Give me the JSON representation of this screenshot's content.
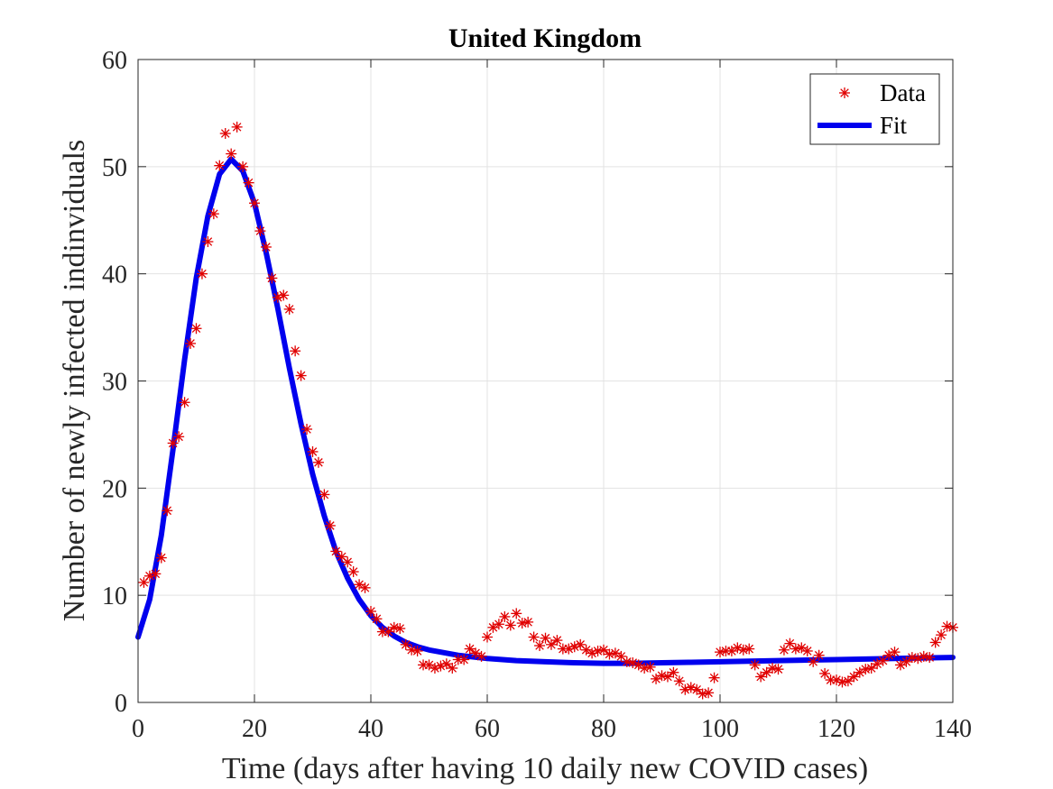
{
  "chart_data": {
    "type": "scatter",
    "title": "United Kingdom",
    "xlabel": "Time (days after having 10 daily new COVID cases)",
    "ylabel": "Number of newly infected indinviduals",
    "xlim": [
      0,
      140
    ],
    "ylim": [
      0,
      60
    ],
    "x_ticks": [
      0,
      20,
      40,
      60,
      80,
      100,
      120,
      140
    ],
    "y_ticks": [
      0,
      10,
      20,
      30,
      40,
      50,
      60
    ],
    "grid": true,
    "legend_placement": "top-right",
    "series": [
      {
        "name": "Data",
        "style": "asterisk-marker",
        "color": "#e00000",
        "points": [
          [
            1,
            11.2
          ],
          [
            2,
            11.8
          ],
          [
            3,
            12.0
          ],
          [
            4,
            13.5
          ],
          [
            5,
            17.9
          ],
          [
            6,
            24.2
          ],
          [
            7,
            24.8
          ],
          [
            8,
            28.0
          ],
          [
            9,
            33.5
          ],
          [
            10,
            34.9
          ],
          [
            11,
            40.0
          ],
          [
            12,
            43.0
          ],
          [
            13,
            45.6
          ],
          [
            14,
            50.1
          ],
          [
            15,
            53.1
          ],
          [
            16,
            51.2
          ],
          [
            17,
            53.7
          ],
          [
            18,
            50.0
          ],
          [
            19,
            48.5
          ],
          [
            20,
            46.6
          ],
          [
            21,
            44.0
          ],
          [
            22,
            42.5
          ],
          [
            23,
            39.6
          ],
          [
            24,
            37.8
          ],
          [
            25,
            38.0
          ],
          [
            26,
            36.7
          ],
          [
            27,
            32.8
          ],
          [
            28,
            30.5
          ],
          [
            29,
            25.5
          ],
          [
            30,
            23.4
          ],
          [
            31,
            22.4
          ],
          [
            32,
            19.4
          ],
          [
            33,
            16.5
          ],
          [
            34,
            14.1
          ],
          [
            35,
            13.6
          ],
          [
            36,
            13.1
          ],
          [
            37,
            12.2
          ],
          [
            38,
            11.0
          ],
          [
            39,
            10.7
          ],
          [
            40,
            8.5
          ],
          [
            41,
            7.8
          ],
          [
            42,
            6.6
          ],
          [
            43,
            6.6
          ],
          [
            44,
            7.0
          ],
          [
            45,
            6.9
          ],
          [
            46,
            5.4
          ],
          [
            47,
            4.9
          ],
          [
            48,
            4.8
          ],
          [
            49,
            3.5
          ],
          [
            50,
            3.5
          ],
          [
            51,
            3.2
          ],
          [
            52,
            3.4
          ],
          [
            53,
            3.6
          ],
          [
            54,
            3.2
          ],
          [
            55,
            4.0
          ],
          [
            56,
            4.0
          ],
          [
            57,
            5.0
          ],
          [
            58,
            4.6
          ],
          [
            59,
            4.3
          ],
          [
            60,
            6.1
          ],
          [
            61,
            7.0
          ],
          [
            62,
            7.3
          ],
          [
            63,
            8.0
          ],
          [
            64,
            7.2
          ],
          [
            65,
            8.3
          ],
          [
            66,
            7.4
          ],
          [
            67,
            7.5
          ],
          [
            68,
            6.1
          ],
          [
            69,
            5.3
          ],
          [
            70,
            6.0
          ],
          [
            71,
            5.4
          ],
          [
            72,
            5.8
          ],
          [
            73,
            5.0
          ],
          [
            74,
            5.0
          ],
          [
            75,
            5.2
          ],
          [
            76,
            5.4
          ],
          [
            77,
            4.9
          ],
          [
            78,
            4.6
          ],
          [
            79,
            4.8
          ],
          [
            80,
            4.9
          ],
          [
            81,
            4.5
          ],
          [
            82,
            4.6
          ],
          [
            83,
            4.3
          ],
          [
            84,
            3.8
          ],
          [
            85,
            3.7
          ],
          [
            86,
            3.5
          ],
          [
            87,
            3.2
          ],
          [
            88,
            3.3
          ],
          [
            89,
            2.2
          ],
          [
            90,
            2.5
          ],
          [
            91,
            2.4
          ],
          [
            92,
            2.8
          ],
          [
            93,
            2.0
          ],
          [
            94,
            1.2
          ],
          [
            95,
            1.4
          ],
          [
            96,
            1.2
          ],
          [
            97,
            0.8
          ],
          [
            98,
            0.9
          ],
          [
            99,
            2.3
          ],
          [
            100,
            4.7
          ],
          [
            101,
            4.8
          ],
          [
            102,
            4.8
          ],
          [
            103,
            5.1
          ],
          [
            104,
            4.9
          ],
          [
            105,
            5.0
          ],
          [
            106,
            3.5
          ],
          [
            107,
            2.4
          ],
          [
            108,
            2.8
          ],
          [
            109,
            3.2
          ],
          [
            110,
            3.1
          ],
          [
            111,
            4.9
          ],
          [
            112,
            5.5
          ],
          [
            113,
            5.0
          ],
          [
            114,
            5.1
          ],
          [
            115,
            4.8
          ],
          [
            116,
            3.8
          ],
          [
            117,
            4.4
          ],
          [
            118,
            2.7
          ],
          [
            119,
            2.1
          ],
          [
            120,
            2.1
          ],
          [
            121,
            1.9
          ],
          [
            122,
            2.0
          ],
          [
            123,
            2.4
          ],
          [
            124,
            2.8
          ],
          [
            125,
            3.1
          ],
          [
            126,
            3.2
          ],
          [
            127,
            3.6
          ],
          [
            128,
            3.9
          ],
          [
            129,
            4.4
          ],
          [
            130,
            4.7
          ],
          [
            131,
            3.5
          ],
          [
            132,
            3.8
          ],
          [
            133,
            4.2
          ],
          [
            134,
            4.1
          ],
          [
            135,
            4.3
          ],
          [
            136,
            4.2
          ],
          [
            137,
            5.6
          ],
          [
            138,
            6.3
          ],
          [
            139,
            7.1
          ],
          [
            140,
            7.0
          ]
        ]
      },
      {
        "name": "Fit",
        "style": "line",
        "color": "#0000ee",
        "points": [
          [
            0,
            6.1
          ],
          [
            2,
            9.6
          ],
          [
            4,
            15.6
          ],
          [
            6,
            23.6
          ],
          [
            8,
            32.0
          ],
          [
            10,
            39.6
          ],
          [
            12,
            45.4
          ],
          [
            14,
            49.3
          ],
          [
            16,
            50.7
          ],
          [
            18,
            49.6
          ],
          [
            20,
            46.6
          ],
          [
            22,
            42.0
          ],
          [
            24,
            36.8
          ],
          [
            26,
            31.2
          ],
          [
            28,
            26.0
          ],
          [
            30,
            21.3
          ],
          [
            32,
            17.4
          ],
          [
            34,
            14.1
          ],
          [
            36,
            11.6
          ],
          [
            38,
            9.6
          ],
          [
            40,
            8.1
          ],
          [
            42,
            7.0
          ],
          [
            44,
            6.2
          ],
          [
            46,
            5.6
          ],
          [
            48,
            5.2
          ],
          [
            50,
            4.9
          ],
          [
            55,
            4.4
          ],
          [
            60,
            4.1
          ],
          [
            65,
            3.9
          ],
          [
            70,
            3.8
          ],
          [
            75,
            3.7
          ],
          [
            80,
            3.65
          ],
          [
            85,
            3.65
          ],
          [
            90,
            3.7
          ],
          [
            95,
            3.75
          ],
          [
            100,
            3.8
          ],
          [
            105,
            3.85
          ],
          [
            110,
            3.9
          ],
          [
            115,
            3.95
          ],
          [
            120,
            4.0
          ],
          [
            125,
            4.05
          ],
          [
            130,
            4.1
          ],
          [
            135,
            4.15
          ],
          [
            140,
            4.2
          ]
        ]
      }
    ]
  }
}
